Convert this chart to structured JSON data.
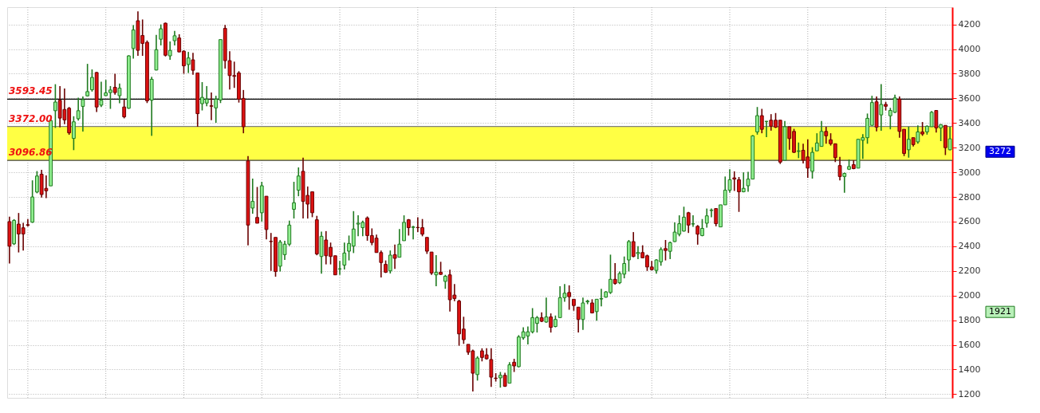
{
  "chart_data": {
    "type": "candlestick",
    "categories": [
      null,
      null,
      null,
      null,
      null,
      null,
      null,
      null,
      null,
      null,
      null,
      null,
      null,
      null,
      null,
      null,
      null,
      null,
      null,
      null,
      null,
      null,
      null,
      null,
      null,
      null,
      null,
      null,
      null,
      null,
      null,
      null,
      null,
      null,
      null,
      null,
      null,
      null,
      null,
      null,
      null,
      null,
      null,
      null,
      null,
      null,
      null,
      null,
      null,
      null,
      null,
      null,
      null,
      null,
      null,
      null,
      null,
      null,
      null,
      null,
      null,
      null,
      null,
      null,
      null,
      null,
      null,
      null,
      null,
      null,
      null,
      null,
      null,
      null,
      null,
      null,
      null,
      null,
      null,
      null,
      null,
      null,
      null,
      null,
      null,
      null,
      null,
      null,
      null,
      null,
      null,
      null,
      null,
      null,
      null,
      null,
      null,
      null,
      null,
      null,
      null,
      null,
      null,
      null,
      null,
      null,
      null,
      null,
      null,
      null,
      null,
      null,
      null,
      null,
      null,
      null,
      null,
      null,
      null,
      null,
      null,
      null,
      null,
      null,
      null,
      null,
      null,
      null,
      null,
      null,
      null,
      null,
      null,
      null,
      null,
      null,
      null,
      null,
      null,
      null,
      null,
      null,
      null,
      null,
      null,
      null,
      null,
      null,
      null,
      null,
      null,
      null,
      null,
      null,
      null,
      null,
      null,
      null,
      null,
      null,
      null,
      null,
      null,
      null,
      null,
      null,
      null,
      null,
      null,
      null,
      null,
      null,
      null,
      null,
      null,
      null,
      null,
      null,
      null,
      null,
      null,
      null,
      null,
      null,
      null,
      null,
      null,
      null,
      null,
      null,
      null,
      null,
      null,
      null,
      null,
      null,
      null,
      null,
      null,
      null,
      null,
      null,
      null,
      null,
      null,
      null
    ],
    "ohlc": [
      [
        2600,
        2640,
        2260,
        2400
      ],
      [
        2420,
        2620,
        2410,
        2610
      ],
      [
        2580,
        2670,
        2350,
        2500
      ],
      [
        2550,
        2590,
        2365,
        2500
      ],
      [
        2575,
        2620,
        2560,
        2570
      ],
      [
        2595,
        2935,
        2590,
        2800
      ],
      [
        2840,
        3010,
        2830,
        2970
      ],
      [
        2985,
        3020,
        2795,
        2820
      ],
      [
        2870,
        2975,
        2790,
        2850
      ],
      [
        2890,
        3430,
        2890,
        3420
      ],
      [
        3500,
        3715,
        3360,
        3570
      ],
      [
        3585,
        3700,
        3365,
        3440
      ],
      [
        3510,
        3680,
        3390,
        3425
      ],
      [
        3520,
        3530,
        3305,
        3320
      ],
      [
        3275,
        3455,
        3180,
        3410
      ],
      [
        3435,
        3605,
        3420,
        3500
      ],
      [
        3535,
        3615,
        3330,
        3590
      ],
      [
        3620,
        3880,
        3615,
        3655
      ],
      [
        3670,
        3835,
        3655,
        3770
      ],
      [
        3810,
        3815,
        3490,
        3530
      ],
      [
        3545,
        3735,
        3530,
        3585
      ],
      [
        3622,
        3750,
        3620,
        3645
      ],
      [
        3647,
        3700,
        3515,
        3668
      ],
      [
        3690,
        3800,
        3630,
        3647
      ],
      [
        3622,
        3720,
        3560,
        3683
      ],
      [
        3530,
        3590,
        3438,
        3450
      ],
      [
        3520,
        3950,
        3515,
        3945
      ],
      [
        4005,
        4195,
        3923,
        4155
      ],
      [
        4230,
        4306,
        3945,
        3990
      ],
      [
        4110,
        4240,
        3945,
        4046
      ],
      [
        4055,
        4070,
        3562,
        3580
      ],
      [
        3585,
        3775,
        3296,
        3755
      ],
      [
        3830,
        4115,
        3828,
        3995
      ],
      [
        4080,
        4200,
        4030,
        4165
      ],
      [
        4210,
        4215,
        3940,
        3950
      ],
      [
        3945,
        4062,
        3913,
        3990
      ],
      [
        4068,
        4147,
        4030,
        4108
      ],
      [
        4090,
        4120,
        3975,
        3977
      ],
      [
        3983,
        3990,
        3800,
        3864
      ],
      [
        3875,
        3977,
        3806,
        3928
      ],
      [
        3913,
        3970,
        3791,
        3828
      ],
      [
        3806,
        3806,
        3370,
        3476
      ],
      [
        3557,
        3732,
        3502,
        3608
      ],
      [
        3562,
        3700,
        3536,
        3594
      ],
      [
        3540,
        3647,
        3423,
        3536
      ],
      [
        3523,
        3621,
        3402,
        3594
      ],
      [
        3587,
        4077,
        3562,
        4077
      ],
      [
        4168,
        4196,
        3842,
        3906
      ],
      [
        3906,
        3983,
        3672,
        3785
      ],
      [
        3785,
        3898,
        3685,
        3779
      ],
      [
        3806,
        3821,
        3566,
        3593
      ],
      [
        3600,
        3668,
        3317,
        3370
      ],
      [
        3093,
        3132,
        2408,
        2572
      ],
      [
        2710,
        2949,
        2664,
        2764
      ],
      [
        2634,
        2881,
        2587,
        2587
      ],
      [
        2672,
        2923,
        2600,
        2891
      ],
      [
        2806,
        2806,
        2455,
        2536
      ],
      [
        2440,
        2508,
        2200,
        2438
      ],
      [
        2472,
        2472,
        2153,
        2195
      ],
      [
        2238,
        2451,
        2195,
        2434
      ],
      [
        2332,
        2444,
        2289,
        2417
      ],
      [
        2417,
        2608,
        2402,
        2572
      ],
      [
        2700,
        2923,
        2625,
        2753
      ],
      [
        2855,
        3040,
        2806,
        2970
      ],
      [
        3008,
        3119,
        2625,
        2764
      ],
      [
        2813,
        2885,
        2625,
        2742
      ],
      [
        2842,
        2842,
        2636,
        2672
      ],
      [
        2615,
        2647,
        2327,
        2338
      ],
      [
        2317,
        2519,
        2178,
        2481
      ],
      [
        2451,
        2523,
        2253,
        2323
      ],
      [
        2391,
        2430,
        2253,
        2317
      ],
      [
        2323,
        2323,
        2168,
        2168
      ],
      [
        2215,
        2281,
        2168,
        2217
      ],
      [
        2247,
        2430,
        2211,
        2345
      ],
      [
        2360,
        2487,
        2285,
        2423
      ],
      [
        2402,
        2685,
        2345,
        2540
      ],
      [
        2580,
        2651,
        2481,
        2587
      ],
      [
        2551,
        2608,
        2481,
        2594
      ],
      [
        2630,
        2642,
        2445,
        2487
      ],
      [
        2487,
        2545,
        2408,
        2430
      ],
      [
        2466,
        2494,
        2349,
        2349
      ],
      [
        2349,
        2366,
        2147,
        2268
      ],
      [
        2253,
        2285,
        2183,
        2189
      ],
      [
        2200,
        2366,
        2179,
        2328
      ],
      [
        2332,
        2413,
        2217,
        2302
      ],
      [
        2311,
        2540,
        2311,
        2417
      ],
      [
        2445,
        2651,
        2445,
        2594
      ],
      [
        2615,
        2621,
        2487,
        2551
      ],
      [
        2553,
        2566,
        2455,
        2557
      ],
      [
        2553,
        2636,
        2515,
        2551
      ],
      [
        2551,
        2621,
        2481,
        2498
      ],
      [
        2472,
        2472,
        2338,
        2360
      ],
      [
        2353,
        2353,
        2168,
        2183
      ],
      [
        2168,
        2328,
        2076,
        2189
      ],
      [
        2189,
        2274,
        2168,
        2172
      ],
      [
        2115,
        2168,
        2055,
        2157
      ],
      [
        2168,
        2210,
        1870,
        1966
      ],
      [
        2004,
        2093,
        1955,
        1976
      ],
      [
        1955,
        1966,
        1593,
        1689
      ],
      [
        1728,
        1828,
        1608,
        1642
      ],
      [
        1604,
        1604,
        1519,
        1540
      ],
      [
        1551,
        1561,
        1221,
        1370
      ],
      [
        1359,
        1508,
        1310,
        1493
      ],
      [
        1551,
        1572,
        1466,
        1498
      ],
      [
        1519,
        1572,
        1480,
        1487
      ],
      [
        1481,
        1572,
        1259,
        1338
      ],
      [
        1330,
        1370,
        1302,
        1327
      ],
      [
        1332,
        1380,
        1253,
        1353
      ],
      [
        1353,
        1374,
        1259,
        1264
      ],
      [
        1289,
        1459,
        1289,
        1438
      ],
      [
        1459,
        1487,
        1380,
        1429
      ],
      [
        1423,
        1679,
        1417,
        1664
      ],
      [
        1657,
        1742,
        1642,
        1706
      ],
      [
        1672,
        1749,
        1604,
        1706
      ],
      [
        1706,
        1898,
        1693,
        1821
      ],
      [
        1774,
        1834,
        1700,
        1821
      ],
      [
        1821,
        1864,
        1785,
        1791
      ],
      [
        1785,
        1983,
        1779,
        1827
      ],
      [
        1827,
        1855,
        1700,
        1742
      ],
      [
        1749,
        1838,
        1742,
        1806
      ],
      [
        1821,
        2076,
        1821,
        1983
      ],
      [
        1983,
        2093,
        1949,
        2019
      ],
      [
        2025,
        2083,
        1885,
        1991
      ],
      [
        1970,
        1970,
        1877,
        1919
      ],
      [
        1906,
        1906,
        1700,
        1806
      ],
      [
        1806,
        1983,
        1721,
        1940
      ],
      [
        1949,
        1966,
        1930,
        1955
      ],
      [
        1940,
        1970,
        1855,
        1859
      ],
      [
        1870,
        1970,
        1796,
        1970
      ],
      [
        1972,
        2055,
        1913,
        1976
      ],
      [
        1987,
        2036,
        1983,
        2030
      ],
      [
        2025,
        2332,
        2013,
        2132
      ],
      [
        2132,
        2264,
        2089,
        2098
      ],
      [
        2104,
        2196,
        2093,
        2179
      ],
      [
        2174,
        2317,
        2140,
        2260
      ],
      [
        2289,
        2451,
        2196,
        2438
      ],
      [
        2438,
        2515,
        2311,
        2317
      ],
      [
        2340,
        2400,
        2296,
        2350
      ],
      [
        2349,
        2408,
        2306,
        2306
      ],
      [
        2323,
        2332,
        2200,
        2232
      ],
      [
        2232,
        2281,
        2204,
        2210
      ],
      [
        2204,
        2296,
        2178,
        2289
      ],
      [
        2274,
        2391,
        2242,
        2374
      ],
      [
        2381,
        2451,
        2285,
        2366
      ],
      [
        2359,
        2438,
        2296,
        2430
      ],
      [
        2438,
        2594,
        2434,
        2515
      ],
      [
        2498,
        2651,
        2481,
        2583
      ],
      [
        2523,
        2721,
        2519,
        2636
      ],
      [
        2672,
        2679,
        2508,
        2572
      ],
      [
        2580,
        2651,
        2557,
        2583
      ],
      [
        2562,
        2572,
        2413,
        2498
      ],
      [
        2487,
        2621,
        2481,
        2545
      ],
      [
        2587,
        2706,
        2551,
        2647
      ],
      [
        2690,
        2706,
        2636,
        2694
      ],
      [
        2706,
        2706,
        2562,
        2583
      ],
      [
        2557,
        2736,
        2557,
        2736
      ],
      [
        2736,
        2966,
        2736,
        2855
      ],
      [
        2855,
        3025,
        2834,
        2940
      ],
      [
        2955,
        3008,
        2849,
        2945
      ],
      [
        2940,
        2962,
        2679,
        2842
      ],
      [
        2842,
        3000,
        2838,
        2870
      ],
      [
        2891,
        3004,
        2842,
        2945
      ],
      [
        2945,
        3302,
        2945,
        3296
      ],
      [
        3328,
        3530,
        3306,
        3460
      ],
      [
        3460,
        3515,
        3317,
        3349
      ],
      [
        3413,
        3417,
        3285,
        3413
      ],
      [
        3423,
        3472,
        3338,
        3374
      ],
      [
        3423,
        3481,
        3359,
        3366
      ],
      [
        3423,
        3423,
        3068,
        3083
      ],
      [
        3098,
        3417,
        3098,
        3370
      ],
      [
        3370,
        3370,
        3183,
        3274
      ],
      [
        3332,
        3353,
        3157,
        3162
      ],
      [
        3170,
        3242,
        3115,
        3174
      ],
      [
        3179,
        3232,
        3072,
        3098
      ],
      [
        3125,
        3268,
        2955,
        3034
      ],
      [
        3008,
        3204,
        2949,
        3162
      ],
      [
        3174,
        3317,
        3174,
        3238
      ],
      [
        3210,
        3417,
        3210,
        3332
      ],
      [
        3332,
        3370,
        3232,
        3296
      ],
      [
        3264,
        3317,
        3217,
        3232
      ],
      [
        3232,
        3232,
        3083,
        3119
      ],
      [
        3055,
        3125,
        2934,
        2966
      ],
      [
        2966,
        2998,
        2834,
        2991
      ],
      [
        3025,
        3104,
        3019,
        3047
      ],
      [
        3062,
        3098,
        3025,
        3030
      ],
      [
        3034,
        3268,
        3034,
        3268
      ],
      [
        3260,
        3310,
        3110,
        3281
      ],
      [
        3281,
        3477,
        3232,
        3438
      ],
      [
        3381,
        3621,
        3381,
        3566
      ],
      [
        3572,
        3615,
        3332,
        3366
      ],
      [
        3466,
        3715,
        3338,
        3551
      ],
      [
        3551,
        3572,
        3502,
        3536
      ],
      [
        3459,
        3523,
        3349,
        3502
      ],
      [
        3487,
        3630,
        3481,
        3604
      ],
      [
        3594,
        3615,
        3281,
        3332
      ],
      [
        3349,
        3349,
        3132,
        3153
      ],
      [
        3183,
        3370,
        3119,
        3268
      ],
      [
        3281,
        3281,
        3210,
        3225
      ],
      [
        3247,
        3381,
        3232,
        3328
      ],
      [
        3328,
        3408,
        3296,
        3311
      ],
      [
        3328,
        3381,
        3306,
        3374
      ],
      [
        3370,
        3498,
        3370,
        3487
      ],
      [
        3502,
        3502,
        3323,
        3360
      ],
      [
        3360,
        3391,
        3253,
        3387
      ],
      [
        3381,
        3381,
        3140,
        3200
      ],
      [
        3183,
        3370,
        3179,
        3272
      ]
    ],
    "ylim": [
      1170,
      4340
    ],
    "yticks": [
      1200,
      1400,
      1600,
      1800,
      2000,
      2200,
      2400,
      2600,
      2800,
      3000,
      3200,
      3400,
      3600,
      3800,
      4000,
      4200
    ],
    "tick_labels": "y",
    "grid": true,
    "ref_lines": [
      {
        "axis": "y",
        "value": 3593.45,
        "label": "3593.45",
        "color": "#000000"
      },
      {
        "axis": "y",
        "value": 3372.0,
        "label": "3372.00",
        "color": "#808080"
      },
      {
        "axis": "y",
        "value": 3096.86,
        "label": "3096.86",
        "color": "#404040"
      }
    ],
    "bands": [
      {
        "axis": "y",
        "from": 3096.86,
        "to": 3372.0,
        "color": "#ffff44"
      }
    ],
    "annotations": [
      "3272",
      "1921"
    ]
  }
}
